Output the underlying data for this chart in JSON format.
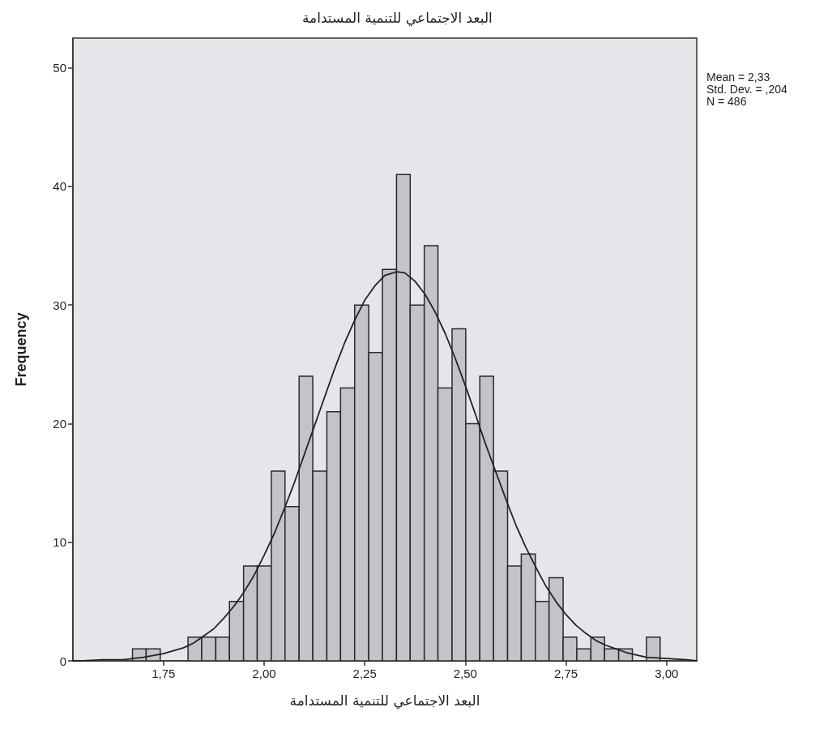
{
  "chart_data": {
    "type": "histogram",
    "title": "البعد الاجتماعي للتنمية المستدامة",
    "xlabel": "البعد الاجتماعي للتنمية المستدامة",
    "ylabel": "Frequency",
    "annotations": [
      "Mean = 2,33",
      "Std. Dev. = ,204",
      "N = 486"
    ],
    "bins": [
      1.673,
      1.707,
      1.742,
      1.776,
      1.811,
      1.845,
      1.88,
      1.914,
      1.949,
      1.983,
      2.018,
      2.052,
      2.087,
      2.121,
      2.156,
      2.19,
      2.225,
      2.26,
      2.294,
      2.329,
      2.363,
      2.398,
      2.432,
      2.467,
      2.501,
      2.536,
      2.57,
      2.605,
      2.639,
      2.674,
      2.708,
      2.743,
      2.777,
      2.812,
      2.846,
      2.881,
      2.915,
      2.95,
      2.984
    ],
    "series": [
      {
        "color": "#c3c3c8",
        "values": [
          1,
          1,
          0,
          0,
          2,
          2,
          2,
          5,
          8,
          8,
          16,
          13,
          24,
          16,
          21,
          23,
          30,
          26,
          33,
          41,
          30,
          35,
          23,
          28,
          20,
          24,
          16,
          8,
          9,
          5,
          7,
          2,
          1,
          2,
          1,
          1,
          0,
          2
        ]
      },
      {
        "type": "line",
        "color": "#222222",
        "x": [
          1.525,
          1.55,
          1.6,
          1.65,
          1.7,
          1.75,
          1.8,
          1.825,
          1.85,
          1.875,
          1.9,
          1.925,
          1.95,
          1.975,
          2.0,
          2.025,
          2.05,
          2.075,
          2.1,
          2.125,
          2.15,
          2.175,
          2.2,
          2.225,
          2.25,
          2.275,
          2.3,
          2.33,
          2.35,
          2.375,
          2.4,
          2.425,
          2.45,
          2.475,
          2.5,
          2.525,
          2.55,
          2.575,
          2.6,
          2.625,
          2.65,
          2.675,
          2.7,
          2.725,
          2.75,
          2.775,
          2.8,
          2.825,
          2.85,
          2.9,
          2.95,
          3.0,
          3.05,
          3.075
        ],
        "values": [
          0.0,
          0.0,
          0.1,
          0.1,
          0.3,
          0.6,
          1.1,
          1.5,
          2.1,
          2.7,
          3.6,
          4.6,
          5.8,
          7.2,
          8.9,
          10.7,
          12.8,
          15.0,
          17.4,
          19.8,
          22.2,
          24.6,
          26.8,
          28.7,
          30.4,
          31.6,
          32.5,
          32.8,
          32.7,
          32.0,
          30.9,
          29.4,
          27.6,
          25.5,
          23.2,
          20.8,
          18.3,
          16.0,
          13.7,
          11.5,
          9.6,
          7.9,
          6.3,
          5.0,
          3.9,
          3.0,
          2.3,
          1.7,
          1.3,
          0.7,
          0.3,
          0.2,
          0.1,
          0.0
        ]
      }
    ],
    "xlim": [
      1.525,
      3.075
    ],
    "xticks": [
      {
        "value": 1.75,
        "label": "1,75"
      },
      {
        "value": 2.0,
        "label": "2,00"
      },
      {
        "value": 2.25,
        "label": "2,25"
      },
      {
        "value": 2.5,
        "label": "2,50"
      },
      {
        "value": 2.75,
        "label": "2,75"
      },
      {
        "value": 3.0,
        "label": "3,00"
      }
    ],
    "ylim": [
      0,
      52.5
    ],
    "yticks": [
      0,
      10,
      20,
      30,
      40,
      50
    ]
  }
}
